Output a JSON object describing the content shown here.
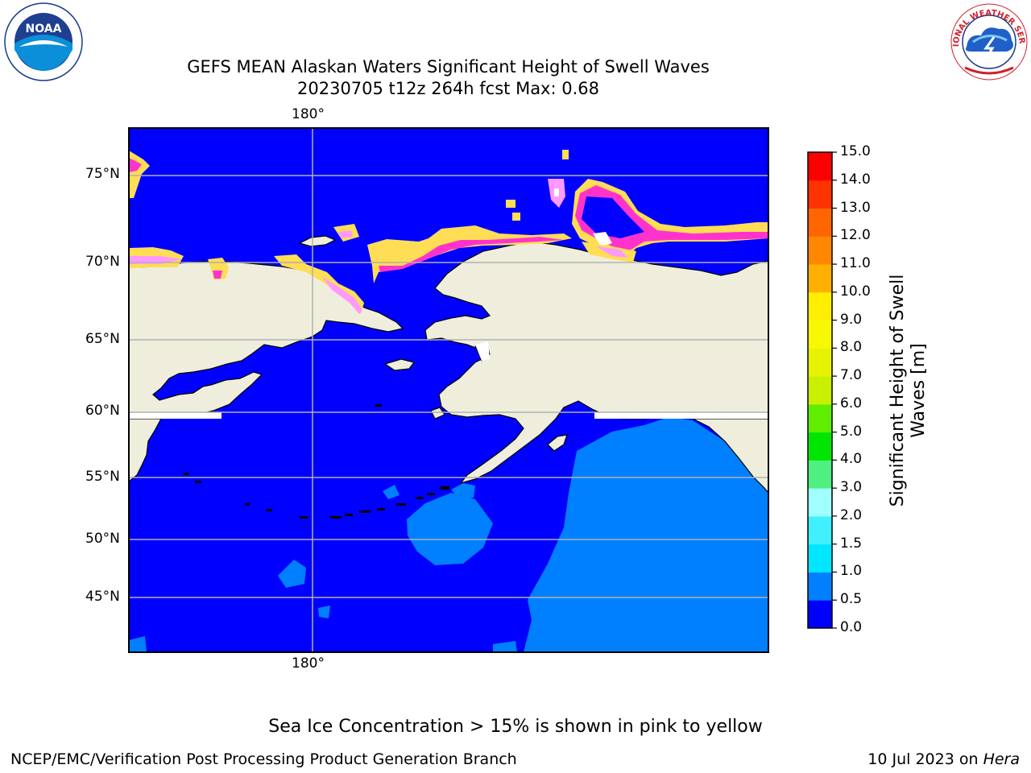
{
  "header": {
    "title_line1": "GEFS MEAN Alaskan Waters Significant Height of Swell Waves",
    "title_line2": "20230705 t12z 264h fcst   Max: 0.68",
    "left_logo": {
      "icon": "noaa-logo",
      "text": "NOAA"
    },
    "right_logo": {
      "icon": "nws-logo",
      "text": "NATIONAL WEATHER SERVICE"
    }
  },
  "map": {
    "projection": "plate-carree",
    "lon_labels": [
      "180°",
      "180°"
    ],
    "lat_labels": [
      "75°N",
      "70°N",
      "65°N",
      "60°N",
      "55°N",
      "50°N",
      "45°N"
    ],
    "colors": {
      "land": "#efeedd",
      "ocean_low": "#0000ff",
      "ocean_mid": "#0080ff",
      "ice": [
        "#ff33cc",
        "#ff99ff",
        "#ffbb33",
        "#ffdd55"
      ],
      "gridline": "#b0b0b0",
      "coast": "#000000"
    }
  },
  "colorbar": {
    "label": "Significant Height of Swell Waves [m]",
    "label_line1": "Significant Height of Swell",
    "label_line2": "Waves [m]",
    "ticks": [
      "15.0",
      "14.0",
      "13.0",
      "12.0",
      "11.0",
      "10.0",
      "9.0",
      "8.0",
      "7.0",
      "6.0",
      "5.0",
      "4.0",
      "3.0",
      "2.0",
      "1.5",
      "1.0",
      "0.5",
      "0.0"
    ],
    "bins": [
      {
        "from": 0.0,
        "to": 0.5,
        "color": "#0000ff"
      },
      {
        "from": 0.5,
        "to": 1.0,
        "color": "#0080ff"
      },
      {
        "from": 1.0,
        "to": 1.5,
        "color": "#00e6ff"
      },
      {
        "from": 1.5,
        "to": 2.0,
        "color": "#40f0ff"
      },
      {
        "from": 2.0,
        "to": 3.0,
        "color": "#a0ffff"
      },
      {
        "from": 3.0,
        "to": 4.0,
        "color": "#50f080"
      },
      {
        "from": 4.0,
        "to": 5.0,
        "color": "#00e600"
      },
      {
        "from": 5.0,
        "to": 6.0,
        "color": "#60ee00"
      },
      {
        "from": 6.0,
        "to": 7.0,
        "color": "#c8f000"
      },
      {
        "from": 7.0,
        "to": 8.0,
        "color": "#e6f200"
      },
      {
        "from": 8.0,
        "to": 9.0,
        "color": "#f8f800"
      },
      {
        "from": 9.0,
        "to": 10.0,
        "color": "#ffee00"
      },
      {
        "from": 10.0,
        "to": 11.0,
        "color": "#ffb000"
      },
      {
        "from": 11.0,
        "to": 12.0,
        "color": "#ff8800"
      },
      {
        "from": 12.0,
        "to": 13.0,
        "color": "#ff6600"
      },
      {
        "from": 13.0,
        "to": 14.0,
        "color": "#ff3300"
      },
      {
        "from": 14.0,
        "to": 15.0,
        "color": "#ff0000"
      }
    ]
  },
  "note": "Sea Ice Concentration > 15% is shown in pink to yellow",
  "footer": {
    "left": "NCEP/EMC/Verification Post Processing Product Generation Branch",
    "right_date": "10 Jul 2023 on ",
    "right_host": "Hera"
  }
}
